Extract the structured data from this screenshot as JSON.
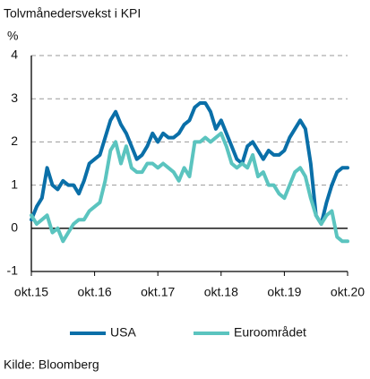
{
  "chart_data": {
    "type": "line",
    "title": "Tolvmånedersvekst i KPI",
    "y_unit": "%",
    "source": "Kilde: Bloomberg",
    "categories": [
      "okt.15",
      null,
      null,
      null,
      null,
      null,
      null,
      null,
      null,
      null,
      null,
      null,
      "okt.16",
      null,
      null,
      null,
      null,
      null,
      null,
      null,
      null,
      null,
      null,
      null,
      "okt.17",
      null,
      null,
      null,
      null,
      null,
      null,
      null,
      null,
      null,
      null,
      null,
      "okt.18",
      null,
      null,
      null,
      null,
      null,
      null,
      null,
      null,
      null,
      null,
      null,
      "okt.19",
      null,
      null,
      null,
      null,
      null,
      null,
      null,
      null,
      null,
      null,
      null,
      "okt.20"
    ],
    "series": [
      {
        "name": "USA",
        "color": "#0a6fa8",
        "values": [
          0.2,
          0.5,
          0.7,
          1.4,
          1.0,
          0.9,
          1.1,
          1.0,
          1.0,
          0.8,
          1.1,
          1.5,
          1.6,
          1.7,
          2.1,
          2.5,
          2.7,
          2.4,
          2.2,
          1.9,
          1.6,
          1.7,
          1.9,
          2.2,
          2.0,
          2.2,
          2.1,
          2.1,
          2.2,
          2.4,
          2.5,
          2.8,
          2.9,
          2.9,
          2.7,
          2.3,
          2.5,
          2.2,
          1.9,
          1.6,
          1.5,
          1.9,
          2.0,
          1.8,
          1.6,
          1.8,
          1.7,
          1.7,
          1.8,
          2.1,
          2.3,
          2.5,
          2.3,
          1.5,
          0.3,
          0.1,
          0.6,
          1.0,
          1.3,
          1.4,
          1.4
        ]
      },
      {
        "name": "Euroområdet",
        "color": "#5bc4bf",
        "values": [
          0.3,
          0.1,
          0.2,
          0.3,
          -0.1,
          0.0,
          -0.3,
          -0.1,
          0.1,
          0.2,
          0.2,
          0.4,
          0.5,
          0.6,
          1.1,
          1.8,
          2.0,
          1.5,
          1.9,
          1.4,
          1.3,
          1.3,
          1.5,
          1.5,
          1.4,
          1.5,
          1.4,
          1.3,
          1.1,
          1.4,
          1.2,
          2.0,
          2.0,
          2.1,
          2.0,
          2.1,
          2.2,
          1.9,
          1.5,
          1.4,
          1.5,
          1.4,
          1.7,
          1.2,
          1.3,
          1.0,
          1.0,
          0.8,
          0.7,
          1.0,
          1.3,
          1.4,
          1.2,
          0.7,
          0.3,
          0.1,
          0.3,
          0.4,
          -0.2,
          -0.3,
          -0.3
        ]
      }
    ],
    "ylim": [
      -1,
      4
    ],
    "yticks": [
      -1,
      0,
      1,
      2,
      3,
      4
    ],
    "grid": true,
    "legend": "bottom"
  }
}
